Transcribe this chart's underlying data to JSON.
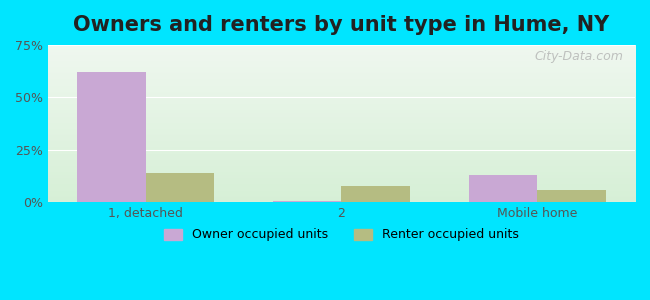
{
  "title": "Owners and renters by unit type in Hume, NY",
  "categories": [
    "1, detached",
    "2",
    "Mobile home"
  ],
  "owner_values": [
    62,
    0.5,
    13
  ],
  "renter_values": [
    14,
    8,
    6
  ],
  "owner_color": "#c9a8d4",
  "renter_color": "#b5bc82",
  "ylim": [
    0,
    75
  ],
  "yticks": [
    0,
    25,
    50,
    75
  ],
  "ytick_labels": [
    "0%",
    "25%",
    "50%",
    "75%"
  ],
  "background_color": "#00e5ff",
  "plot_bg_top": "#e8f4e8",
  "plot_bg_bottom": "#d8f0d8",
  "title_fontsize": 15,
  "bar_width": 0.35,
  "legend_owner": "Owner occupied units",
  "legend_renter": "Renter occupied units",
  "watermark": "City-Data.com"
}
